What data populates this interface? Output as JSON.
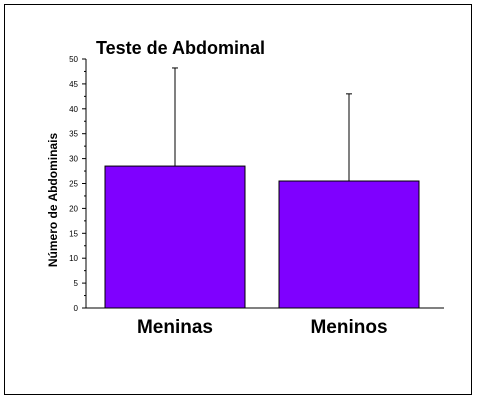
{
  "chart_data": {
    "type": "bar",
    "title": "Teste de Abdominal",
    "xlabel": "",
    "ylabel": "Número de Abdominais",
    "categories": [
      "Meninas",
      "Meninos"
    ],
    "values": [
      28.5,
      25.5
    ],
    "error_upper": [
      48.2,
      43.0
    ],
    "ylim": [
      0,
      50
    ],
    "yticks": [
      "0",
      "5",
      "10",
      "15",
      "20",
      "25",
      "30",
      "35",
      "40",
      "45",
      "50"
    ],
    "bar_color": "#7f00ff",
    "grid": false,
    "legend": "none"
  }
}
